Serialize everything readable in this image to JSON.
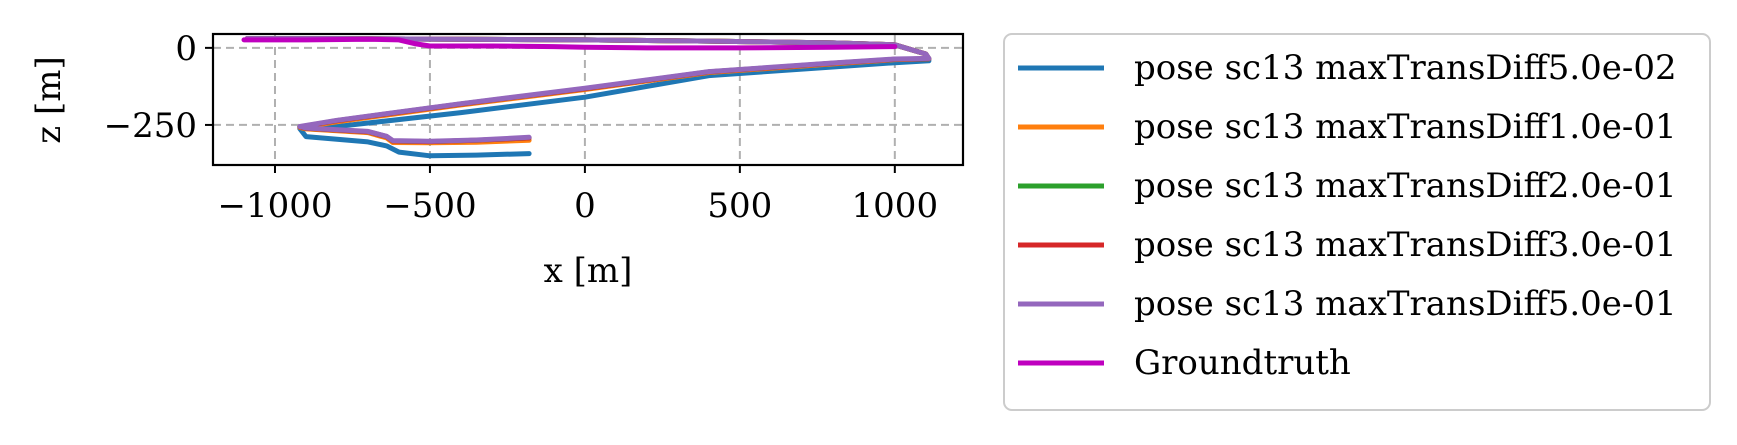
{
  "chart_data": {
    "type": "line",
    "xlabel": "x [m]",
    "ylabel": "z [m]",
    "xlim": [
      -1200,
      1220
    ],
    "ylim": [
      -380,
      45
    ],
    "xticks": [
      -1000,
      -500,
      0,
      500,
      1000
    ],
    "xtick_labels": [
      "−1000",
      "−500",
      "0",
      "500",
      "1000"
    ],
    "yticks": [
      0,
      -250
    ],
    "ytick_labels": [
      "0",
      "−250"
    ],
    "grid": true,
    "legend_position": "right-outside",
    "series": [
      {
        "name": "pose sc13 maxTransDiff5.0e-02",
        "color": "#1f77b4",
        "x": [
          -1090,
          -800,
          -400,
          0,
          400,
          800,
          1000,
          1100,
          1110,
          1000,
          800,
          400,
          0,
          -400,
          -800,
          -920,
          -900,
          -700,
          -640,
          -600,
          -500,
          -350,
          -180
        ],
        "y": [
          30,
          30,
          28,
          26,
          22,
          16,
          10,
          -20,
          -42,
          -48,
          -62,
          -90,
          -160,
          -210,
          -255,
          -262,
          -288,
          -305,
          -318,
          -338,
          -350,
          -348,
          -343
        ]
      },
      {
        "name": "pose sc13 maxTransDiff1.0e-01",
        "color": "#ff7f0e",
        "x": [
          -1090,
          -800,
          -400,
          0,
          400,
          800,
          1000,
          1100,
          1110,
          1000,
          800,
          400,
          0,
          -400,
          -800,
          -920,
          -900,
          -700,
          -640,
          -620,
          -500,
          -350,
          -180
        ],
        "y": [
          30,
          30,
          28,
          26,
          22,
          16,
          10,
          -20,
          -35,
          -38,
          -52,
          -80,
          -135,
          -185,
          -240,
          -258,
          -263,
          -275,
          -292,
          -307,
          -308,
          -306,
          -300
        ]
      },
      {
        "name": "pose sc13 maxTransDiff2.0e-01",
        "color": "#2ca02c",
        "x": [
          -1090,
          -800,
          -400,
          0,
          400,
          800,
          1000,
          1100,
          1110,
          1000,
          800,
          400,
          0,
          -400,
          -800,
          -920,
          -900,
          -700,
          -640,
          -620,
          -500,
          -350,
          -180
        ],
        "y": [
          30,
          30,
          28,
          26,
          22,
          16,
          10,
          -20,
          -35,
          -37,
          -50,
          -78,
          -132,
          -182,
          -236,
          -256,
          -261,
          -272,
          -288,
          -302,
          -304,
          -300,
          -292
        ]
      },
      {
        "name": "pose sc13 maxTransDiff3.0e-01",
        "color": "#d62728",
        "x": [
          -1090,
          -800,
          -400,
          0,
          400,
          800,
          1000,
          1100,
          1110,
          1000,
          800,
          400,
          0,
          -400,
          -800,
          -920,
          -900,
          -700,
          -640,
          -620,
          -500,
          -350,
          -180
        ],
        "y": [
          30,
          30,
          28,
          26,
          22,
          16,
          10,
          -20,
          -35,
          -37,
          -50,
          -78,
          -132,
          -182,
          -236,
          -256,
          -261,
          -272,
          -288,
          -302,
          -304,
          -300,
          -292
        ]
      },
      {
        "name": "pose sc13 maxTransDiff5.0e-01",
        "color": "#9467bd",
        "x": [
          -1090,
          -800,
          -400,
          0,
          400,
          800,
          1000,
          1100,
          1110,
          1000,
          800,
          400,
          0,
          -400,
          -800,
          -920,
          -900,
          -700,
          -640,
          -620,
          -500,
          -350,
          -180
        ],
        "y": [
          30,
          30,
          28,
          26,
          22,
          16,
          10,
          -20,
          -34,
          -36,
          -49,
          -77,
          -131,
          -181,
          -235,
          -255,
          -260,
          -271,
          -287,
          -301,
          -303,
          -299,
          -290
        ]
      },
      {
        "name": "Groundtruth",
        "color": "#bf00bf",
        "x": [
          -1100,
          -900,
          -700,
          -600,
          -550,
          -500,
          -300,
          -100,
          0,
          200,
          500,
          800,
          1000
        ],
        "y": [
          26,
          26,
          28,
          26,
          14,
          6,
          6,
          4,
          2,
          0,
          0,
          2,
          4
        ]
      }
    ]
  }
}
